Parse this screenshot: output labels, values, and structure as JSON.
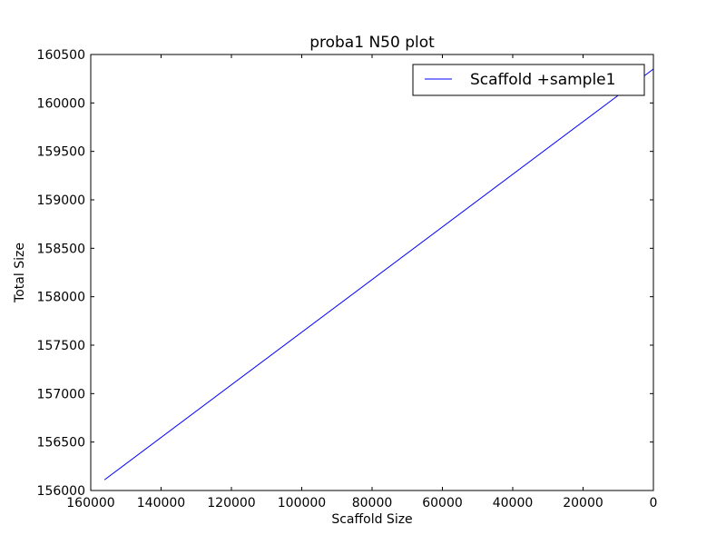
{
  "chart_data": {
    "type": "line",
    "title": "proba1 N50 plot",
    "xlabel": "Scaffold Size",
    "ylabel": "Total Size",
    "xlim": [
      160000,
      0
    ],
    "ylim": [
      156000,
      160500
    ],
    "x_inverted": true,
    "xticks": [
      160000,
      140000,
      120000,
      100000,
      80000,
      60000,
      40000,
      20000,
      0
    ],
    "xtick_labels": [
      "160000",
      "140000",
      "120000",
      "100000",
      "80000",
      "60000",
      "40000",
      "20000",
      "0"
    ],
    "yticks": [
      156000,
      156500,
      157000,
      157500,
      158000,
      158500,
      159000,
      159500,
      160000,
      160500
    ],
    "ytick_labels": [
      "156000",
      "156500",
      "157000",
      "157500",
      "158000",
      "158500",
      "159000",
      "159500",
      "160000",
      "160500"
    ],
    "grid": false,
    "legend_position": "top-right",
    "series": [
      {
        "name": "Scaffold +sample1",
        "color": "#0000ff",
        "x": [
          156100,
          0
        ],
        "y": [
          156110,
          160350
        ]
      }
    ]
  }
}
